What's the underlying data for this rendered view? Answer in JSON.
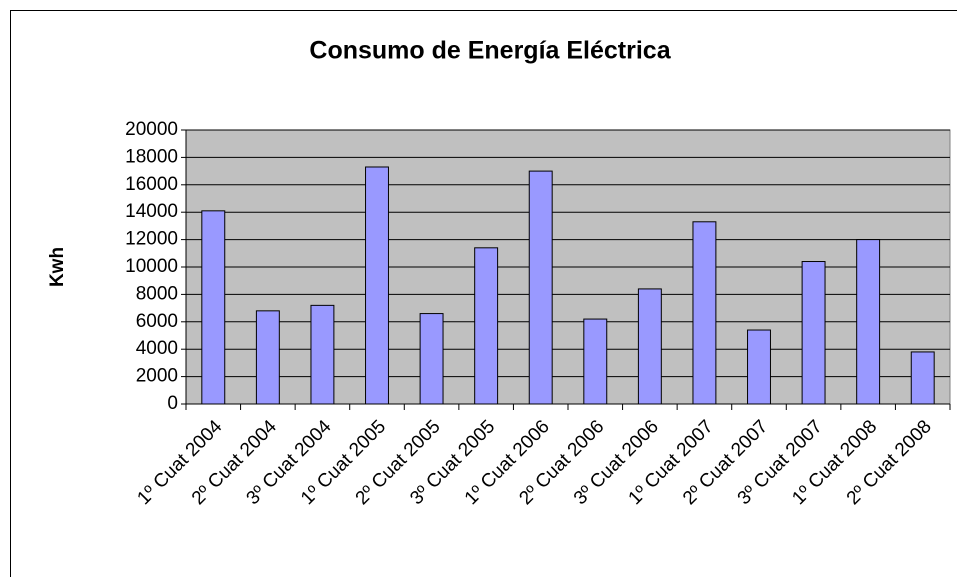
{
  "chart_data": {
    "type": "bar",
    "title": "Consumo de Energía Eléctrica",
    "y_label": "Kwh",
    "categories": [
      "1º Cuat 2004",
      "2º Cuat 2004",
      "3º Cuat 2004",
      "1º Cuat 2005",
      "2º Cuat 2005",
      "3º Cuat 2005",
      "1º Cuat 2006",
      "2º Cuat 2006",
      "3º Cuat 2006",
      "1º Cuat 2007",
      "2º Cuat 2007",
      "3º Cuat 2007",
      "1º Cuat 2008",
      "2º Cuat 2008"
    ],
    "values": [
      14100,
      6800,
      7200,
      17300,
      6600,
      11400,
      17000,
      6200,
      8400,
      13300,
      5400,
      10400,
      12000,
      3800
    ],
    "color": "#9999ff",
    "ylim": [
      0,
      20000
    ],
    "yticks": [
      0,
      2000,
      4000,
      6000,
      8000,
      10000,
      12000,
      14000,
      16000,
      18000,
      20000
    ],
    "grid": true
  }
}
